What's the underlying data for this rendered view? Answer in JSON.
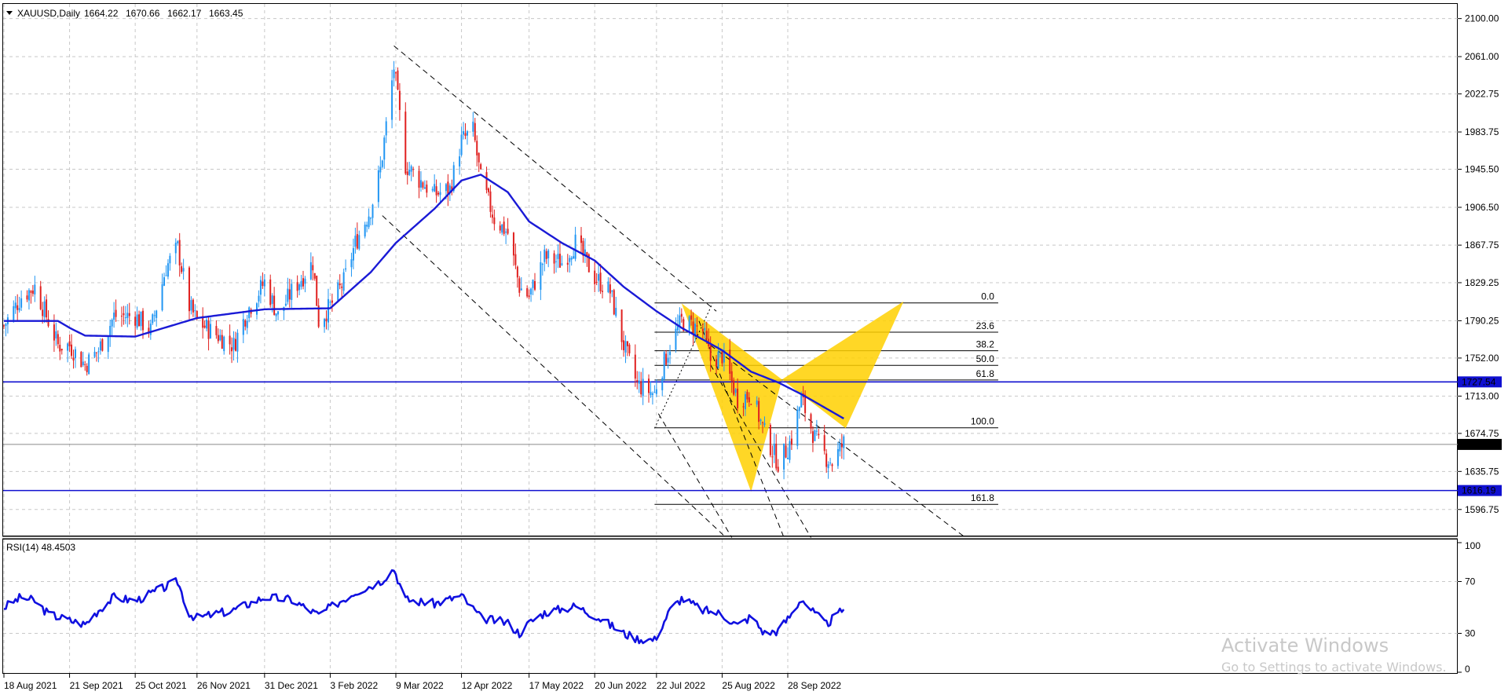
{
  "chart_data": [
    {
      "type": "candlestick",
      "header": {
        "symbol": "XAUUSD,Daily",
        "open": "1664.22",
        "high": "1670.66",
        "low": "1662.17",
        "close": "1663.45"
      },
      "y_ticks": [
        "2100.00",
        "2061.00",
        "2022.75",
        "1983.75",
        "1945.50",
        "1906.50",
        "1867.75",
        "1829.25",
        "1790.25",
        "1752.00",
        "1713.00",
        "1674.75",
        "1635.75",
        "1596.75"
      ],
      "ylim": [
        1570,
        2115
      ],
      "x_ticks": [
        "18 Aug 2021",
        "21 Sep 2021",
        "25 Oct 2021",
        "26 Nov 2021",
        "31 Dec 2021",
        "3 Feb 2022",
        "9 Mar 2022",
        "12 Apr 2022",
        "17 May 2022",
        "20 Jun 2022",
        "22 Jul 2022",
        "25 Aug 2022",
        "28 Sep 2022"
      ],
      "close_series_anchors": [
        [
          "18 Aug 2021",
          1785
        ],
        [
          "27 Aug 2021",
          1815
        ],
        [
          "3 Sep 2021",
          1825
        ],
        [
          "10 Sep 2021",
          1790
        ],
        [
          "15 Sep 2021",
          1765
        ],
        [
          "21 Sep 2021",
          1765
        ],
        [
          "29 Sep 2021",
          1745
        ],
        [
          "6 Oct 2021",
          1760
        ],
        [
          "14 Oct 2021",
          1795
        ],
        [
          "25 Oct 2021",
          1795
        ],
        [
          "2 Nov 2021",
          1780
        ],
        [
          "10 Nov 2021",
          1845
        ],
        [
          "16 Nov 2021",
          1865
        ],
        [
          "22 Nov 2021",
          1805
        ],
        [
          "26 Nov 2021",
          1790
        ],
        [
          "3 Dec 2021",
          1780
        ],
        [
          "15 Dec 2021",
          1765
        ],
        [
          "22 Dec 2021",
          1800
        ],
        [
          "31 Dec 2021",
          1830
        ],
        [
          "7 Jan 2022",
          1795
        ],
        [
          "14 Jan 2022",
          1820
        ],
        [
          "25 Jan 2022",
          1850
        ],
        [
          "28 Jan 2022",
          1790
        ],
        [
          "3 Feb 2022",
          1805
        ],
        [
          "10 Feb 2022",
          1830
        ],
        [
          "16 Feb 2022",
          1870
        ],
        [
          "24 Feb 2022",
          1905
        ],
        [
          "1 Mar 2022",
          1945
        ],
        [
          "8 Mar 2022",
          2050
        ],
        [
          "14 Mar 2022",
          1950
        ],
        [
          "21 Mar 2022",
          1935
        ],
        [
          "29 Mar 2022",
          1920
        ],
        [
          "6 Apr 2022",
          1925
        ],
        [
          "12 Apr 2022",
          1975
        ],
        [
          "18 Apr 2022",
          1985
        ],
        [
          "22 Apr 2022",
          1935
        ],
        [
          "29 Apr 2022",
          1895
        ],
        [
          "6 May 2022",
          1880
        ],
        [
          "12 May 2022",
          1825
        ],
        [
          "17 May 2022",
          1815
        ],
        [
          "25 May 2022",
          1855
        ],
        [
          "3 Jun 2022",
          1850
        ],
        [
          "10 Jun 2022",
          1870
        ],
        [
          "20 Jun 2022",
          1835
        ],
        [
          "28 Jun 2022",
          1820
        ],
        [
          "5 Jul 2022",
          1765
        ],
        [
          "12 Jul 2022",
          1725
        ],
        [
          "21 Jul 2022",
          1715
        ],
        [
          "22 Jul 2022",
          1725
        ],
        [
          "29 Jul 2022",
          1765
        ],
        [
          "4 Aug 2022",
          1790
        ],
        [
          "15 Aug 2022",
          1780
        ],
        [
          "19 Aug 2022",
          1750
        ],
        [
          "25 Aug 2022",
          1755
        ],
        [
          "2 Sep 2022",
          1710
        ],
        [
          "9 Sep 2022",
          1715
        ],
        [
          "16 Sep 2022",
          1675
        ],
        [
          "23 Sep 2022",
          1645
        ],
        [
          "28 Sep 2022",
          1660
        ],
        [
          "30 Sep 2022",
          1670
        ],
        [
          "5 Oct 2022",
          1710
        ],
        [
          "12 Oct 2022",
          1670
        ],
        [
          "18 Oct 2022",
          1650
        ],
        [
          "21 Oct 2022",
          1645
        ],
        [
          "27 Oct 2022",
          1665
        ]
      ],
      "ma_anchors": [
        [
          "18 Aug 2021",
          1790
        ],
        [
          "15 Sep 2021",
          1790
        ],
        [
          "21 Sep 2021",
          1783
        ],
        [
          "29 Sep 2021",
          1775
        ],
        [
          "25 Oct 2021",
          1774
        ],
        [
          "26 Nov 2021",
          1793
        ],
        [
          "31 Dec 2021",
          1802
        ],
        [
          "3 Feb 2022",
          1803
        ],
        [
          "24 Feb 2022",
          1840
        ],
        [
          "9 Mar 2022",
          1870
        ],
        [
          "29 Mar 2022",
          1905
        ],
        [
          "12 Apr 2022",
          1934
        ],
        [
          "22 Apr 2022",
          1940
        ],
        [
          "6 May 2022",
          1922
        ],
        [
          "17 May 2022",
          1892
        ],
        [
          "3 Jun 2022",
          1870
        ],
        [
          "20 Jun 2022",
          1852
        ],
        [
          "5 Jul 2022",
          1825
        ],
        [
          "22 Jul 2022",
          1800
        ],
        [
          "4 Aug 2022",
          1783
        ],
        [
          "25 Aug 2022",
          1760
        ],
        [
          "9 Sep 2022",
          1738
        ],
        [
          "23 Sep 2022",
          1727
        ],
        [
          "5 Oct 2022",
          1715
        ],
        [
          "27 Oct 2022",
          1690
        ]
      ],
      "horizontal_lines": [
        {
          "value": 1727.54,
          "label": "1727.54",
          "color": "#1010d0"
        },
        {
          "value": 1616.19,
          "label": "1616.19",
          "color": "#1010d0"
        },
        {
          "value": 1663.45,
          "label": "1663.45",
          "color": "#000000"
        }
      ],
      "fibonacci": {
        "from_date": "21 Jul 2022",
        "to_date": "15 Jan 2023",
        "levels": [
          {
            "label": "0.0",
            "value": 1808.5
          },
          {
            "label": "23.6",
            "value": 1778.5
          },
          {
            "label": "38.2",
            "value": 1759.5
          },
          {
            "label": "50.0",
            "value": 1744.5
          },
          {
            "label": "61.8",
            "value": 1729.5
          },
          {
            "label": "100.0",
            "value": 1680.5
          },
          {
            "label": "161.8",
            "value": 1602
          }
        ]
      },
      "harmonic_pattern": {
        "color": "#ffd000",
        "points": [
          [
            "4 Aug 2022",
            1808
          ],
          [
            "9 Sep 2022",
            1615
          ],
          [
            "25 Sep 2022",
            1730
          ],
          [
            "28 Oct 2022",
            1680
          ],
          [
            "27 Nov 2022",
            1810
          ]
        ]
      },
      "trend_channel": [
        {
          "from": [
            "8 Mar 2022",
            2072
          ],
          "to": [
            "22 Aug 2022",
            1800
          ]
        },
        {
          "from": [
            "2 Mar 2022",
            1898
          ],
          "to": [
            "27 Aug 2022",
            1568
          ]
        },
        {
          "from": [
            "23 Jul 2022",
            1695
          ],
          "to": [
            "30 Aug 2022",
            1568
          ]
        },
        {
          "from": [
            "13 Aug 2022",
            1790
          ],
          "to": [
            "26 Sep 2022",
            1568
          ]
        },
        {
          "from": [
            "19 Aug 2022",
            1745
          ],
          "to": [
            "10 Oct 2022",
            1568
          ]
        },
        {
          "from": [
            "19 Aug 2022",
            1765
          ],
          "to": [
            "29 Dec 2022",
            1568
          ]
        },
        {
          "from": [
            "21 Jul 2022",
            1680
          ],
          "to": [
            "20 Aug 2022",
            1808
          ],
          "style": "dotted"
        }
      ],
      "colors": {
        "up": "#2196f3",
        "down": "#e0201f",
        "ma": "#1a1ad6"
      }
    },
    {
      "type": "line",
      "title": "RSI(14) 48.4503",
      "ylim": [
        0,
        100
      ],
      "y_ticks": [
        "100",
        "70",
        "30",
        "0"
      ],
      "series": [
        {
          "name": "RSI(14)",
          "color": "#1010e0",
          "anchors": [
            [
              "18 Aug 2021",
              50
            ],
            [
              "27 Aug 2021",
              58
            ],
            [
              "3 Sep 2021",
              55
            ],
            [
              "10 Sep 2021",
              45
            ],
            [
              "21 Sep 2021",
              40
            ],
            [
              "29 Sep 2021",
              37
            ],
            [
              "6 Oct 2021",
              48
            ],
            [
              "14 Oct 2021",
              58
            ],
            [
              "25 Oct 2021",
              55
            ],
            [
              "10 Nov 2021",
              66
            ],
            [
              "16 Nov 2021",
              70
            ],
            [
              "22 Nov 2021",
              45
            ],
            [
              "26 Nov 2021",
              42
            ],
            [
              "15 Dec 2021",
              48
            ],
            [
              "31 Dec 2021",
              58
            ],
            [
              "14 Jan 2022",
              56
            ],
            [
              "28 Jan 2022",
              44
            ],
            [
              "3 Feb 2022",
              50
            ],
            [
              "16 Feb 2022",
              62
            ],
            [
              "1 Mar 2022",
              70
            ],
            [
              "8 Mar 2022",
              80
            ],
            [
              "14 Mar 2022",
              56
            ],
            [
              "29 Mar 2022",
              53
            ],
            [
              "12 Apr 2022",
              59
            ],
            [
              "22 Apr 2022",
              42
            ],
            [
              "6 May 2022",
              38
            ],
            [
              "12 May 2022",
              30
            ],
            [
              "17 May 2022",
              38
            ],
            [
              "25 May 2022",
              46
            ],
            [
              "10 Jun 2022",
              51
            ],
            [
              "20 Jun 2022",
              44
            ],
            [
              "5 Jul 2022",
              30
            ],
            [
              "12 Jul 2022",
              26
            ],
            [
              "21 Jul 2022",
              25
            ],
            [
              "29 Jul 2022",
              48
            ],
            [
              "4 Aug 2022",
              57
            ],
            [
              "15 Aug 2022",
              48
            ],
            [
              "25 Aug 2022",
              45
            ],
            [
              "2 Sep 2022",
              36
            ],
            [
              "9 Sep 2022",
              43
            ],
            [
              "16 Sep 2022",
              30
            ],
            [
              "23 Sep 2022",
              32
            ],
            [
              "30 Sep 2022",
              45
            ],
            [
              "5 Oct 2022",
              57
            ],
            [
              "12 Oct 2022",
              45
            ],
            [
              "18 Oct 2022",
              37
            ],
            [
              "27 Oct 2022",
              48.45
            ]
          ]
        }
      ]
    }
  ],
  "levels_reference": {
    "rsi_70": 70,
    "rsi_30": 30
  },
  "watermark": {
    "line1": "Activate Windows",
    "line2": "Go to Settings to activate Windows."
  }
}
